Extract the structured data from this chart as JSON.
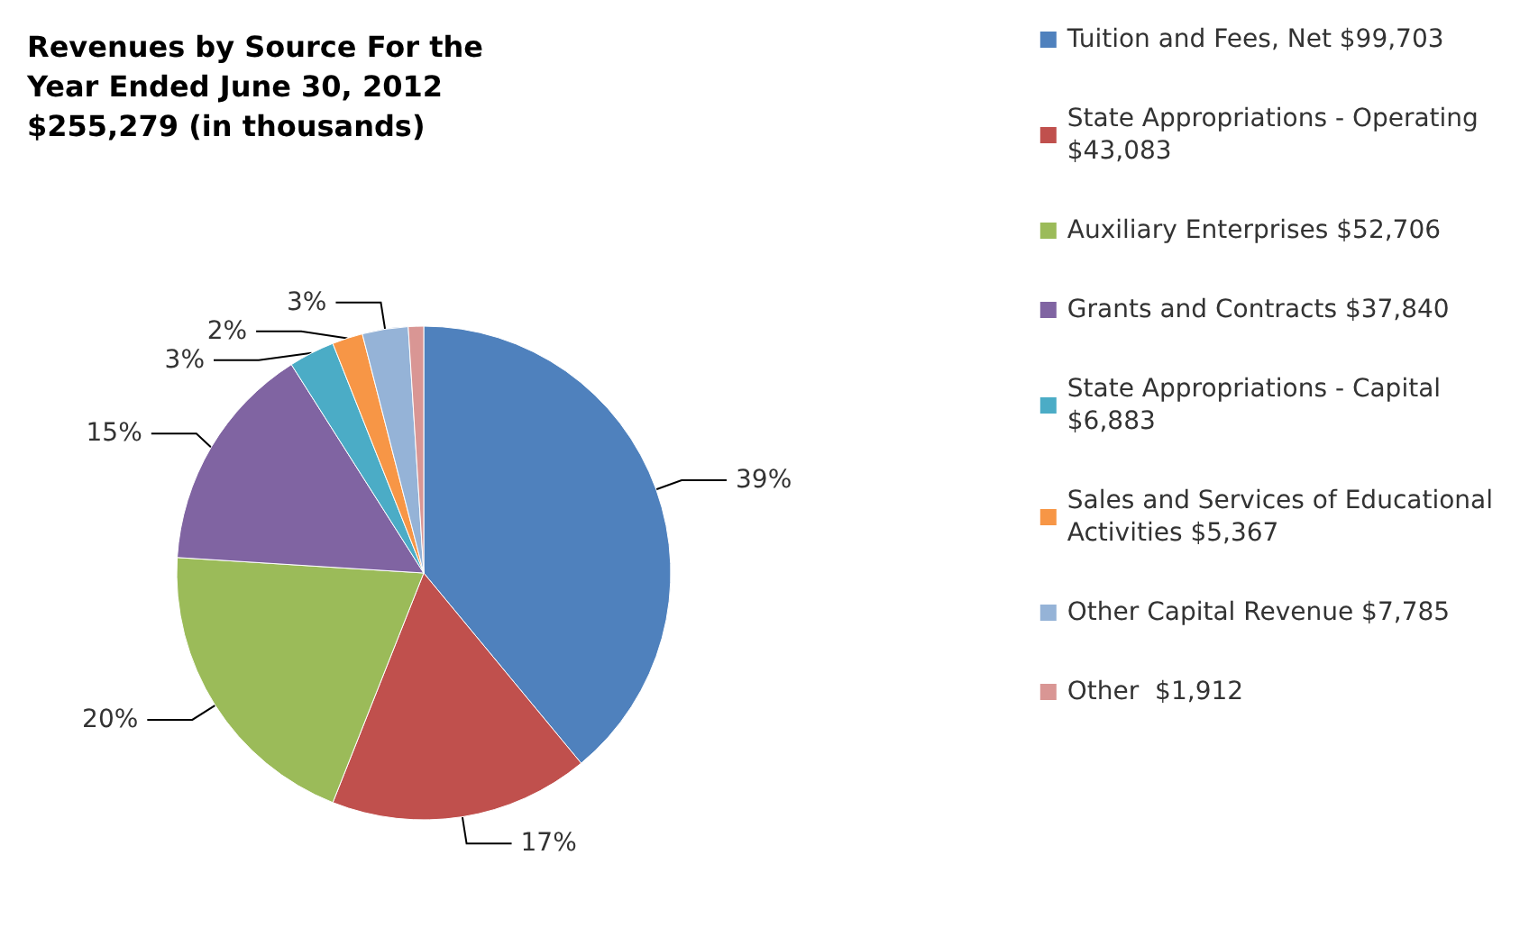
{
  "chart_data": {
    "type": "pie",
    "title": "Revenues by Source For the\nYear Ended June 30, 2012\n$255,279 (in thousands)",
    "categories": [
      "Tuition and Fees, Net $99,703",
      "State Appropriations - Operating $43,083",
      "Auxiliary Enterprises $52,706",
      "Grants and Contracts $37,840",
      "State Appropriations - Capital $6,883",
      "Sales and Services of Educational Activities $5,367",
      "Other Capital Revenue $7,785",
      "Other  $1,912"
    ],
    "values": [
      39,
      17,
      20,
      15,
      3,
      2,
      3,
      1
    ],
    "colors": [
      "#4f81bd",
      "#c0504d",
      "#9bbb59",
      "#8064a2",
      "#4bacc6",
      "#f79646",
      "#95b3d7",
      "#d99694"
    ],
    "value_labels": [
      "39%",
      "17%",
      "20%",
      "15%",
      "3%",
      "2%",
      "3%",
      null
    ],
    "legend": "right"
  }
}
